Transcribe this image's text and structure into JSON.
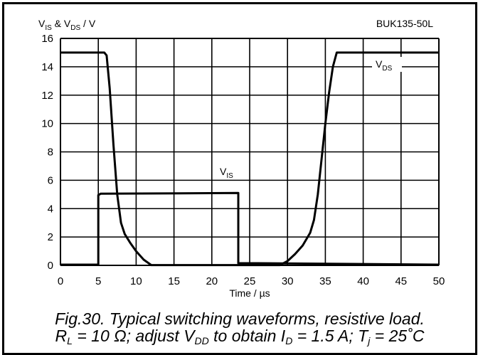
{
  "chart_data": {
    "type": "line",
    "ylabel": {
      "parts": [
        "V",
        "IS",
        " & V",
        "DS",
        " / V"
      ]
    },
    "xlabel": "Time / µs",
    "part_number": "BUK135-50L",
    "xlim": [
      0,
      50
    ],
    "ylim": [
      0,
      16
    ],
    "xticks": [
      0,
      5,
      10,
      15,
      20,
      25,
      30,
      35,
      40,
      45,
      50
    ],
    "yticks": [
      0,
      2,
      4,
      6,
      8,
      10,
      12,
      14,
      16
    ],
    "grid": true,
    "series": [
      {
        "name": {
          "main": "V",
          "sub": "DS"
        },
        "points": [
          [
            0,
            15
          ],
          [
            5.8,
            15
          ],
          [
            6.1,
            14.8
          ],
          [
            6.5,
            12.5
          ],
          [
            7,
            8.5
          ],
          [
            7.5,
            5
          ],
          [
            8,
            3
          ],
          [
            8.5,
            2.2
          ],
          [
            9.2,
            1.6
          ],
          [
            10,
            1
          ],
          [
            11,
            0.4
          ],
          [
            12,
            0.02
          ],
          [
            29,
            0.02
          ],
          [
            30,
            0.3
          ],
          [
            31,
            0.8
          ],
          [
            32,
            1.4
          ],
          [
            33,
            2.3
          ],
          [
            33.5,
            3.2
          ],
          [
            34,
            5
          ],
          [
            34.5,
            7.5
          ],
          [
            35,
            10
          ],
          [
            35.5,
            12.2
          ],
          [
            36,
            14
          ],
          [
            36.5,
            15
          ],
          [
            50,
            15
          ]
        ]
      },
      {
        "name": {
          "main": "V",
          "sub": "IS"
        },
        "points": [
          [
            0,
            0.05
          ],
          [
            5,
            0.05
          ],
          [
            5,
            4.95
          ],
          [
            5.3,
            5.05
          ],
          [
            23.5,
            5.1
          ],
          [
            23.5,
            0.15
          ],
          [
            26,
            0.15
          ],
          [
            50,
            0.05
          ]
        ]
      }
    ]
  },
  "caption": {
    "line1": "Fig.30.   Typical switching waveforms, resistive load.",
    "line2": {
      "r": "R",
      "r_sub": "L",
      "a": " = 10 Ω; adjust V",
      "v_sub": "DD",
      "b": " to obtain I",
      "i_sub": "D",
      "c": " = 1.5 A; T",
      "t_sub": "j",
      "d": " = 25˚C"
    }
  }
}
